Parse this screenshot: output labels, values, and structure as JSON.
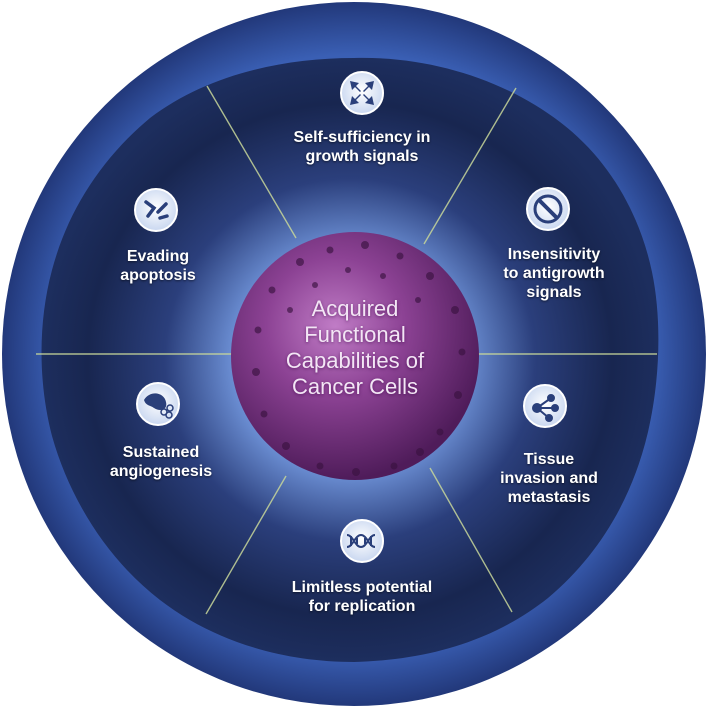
{
  "center": {
    "title_lines": [
      "Acquired",
      "Functional",
      "Capabilities of",
      "Cancer Cells"
    ]
  },
  "segments": [
    {
      "key": "growth",
      "icon": "converging-arrows-icon",
      "lines": [
        "Self-sufficiency in",
        "growth signals"
      ]
    },
    {
      "key": "antigrowth",
      "icon": "no-entry-icon",
      "lines": [
        "Insensitivity",
        "to antigrowth",
        "signals"
      ]
    },
    {
      "key": "invasion",
      "icon": "branching-network-icon",
      "lines": [
        "Tissue",
        "invasion and",
        "metastasis"
      ]
    },
    {
      "key": "replication",
      "icon": "dna-helix-icon",
      "lines": [
        "Limitless potential",
        "for replication"
      ]
    },
    {
      "key": "angiogenesis",
      "icon": "blood-vessel-icon",
      "lines": [
        "Sustained",
        "angiogenesis"
      ]
    },
    {
      "key": "apoptosis",
      "icon": "broken-cell-icon",
      "lines": [
        "Evading",
        "apoptosis"
      ]
    }
  ],
  "colors": {
    "outer_ring": "#3d63b8",
    "inner_dark": "#15203f",
    "glow": "#e9f1ff",
    "sphere": "#8a3f92",
    "divider": "#c8d79a"
  }
}
